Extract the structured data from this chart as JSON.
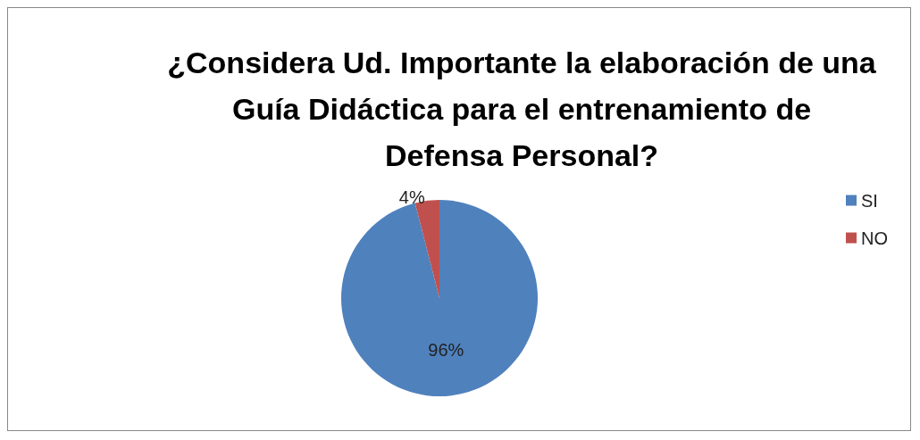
{
  "chart_data": {
    "type": "pie",
    "title": "¿Considera Ud. Importante la elaboración de una Guía Didáctica para el entrenamiento de Defensa Personal?",
    "categories": [
      "SI",
      "NO"
    ],
    "values": [
      96,
      4
    ],
    "colors": [
      "#4f81bd",
      "#c0504d"
    ],
    "value_labels": [
      "96%",
      "4%"
    ],
    "legend": "right"
  }
}
